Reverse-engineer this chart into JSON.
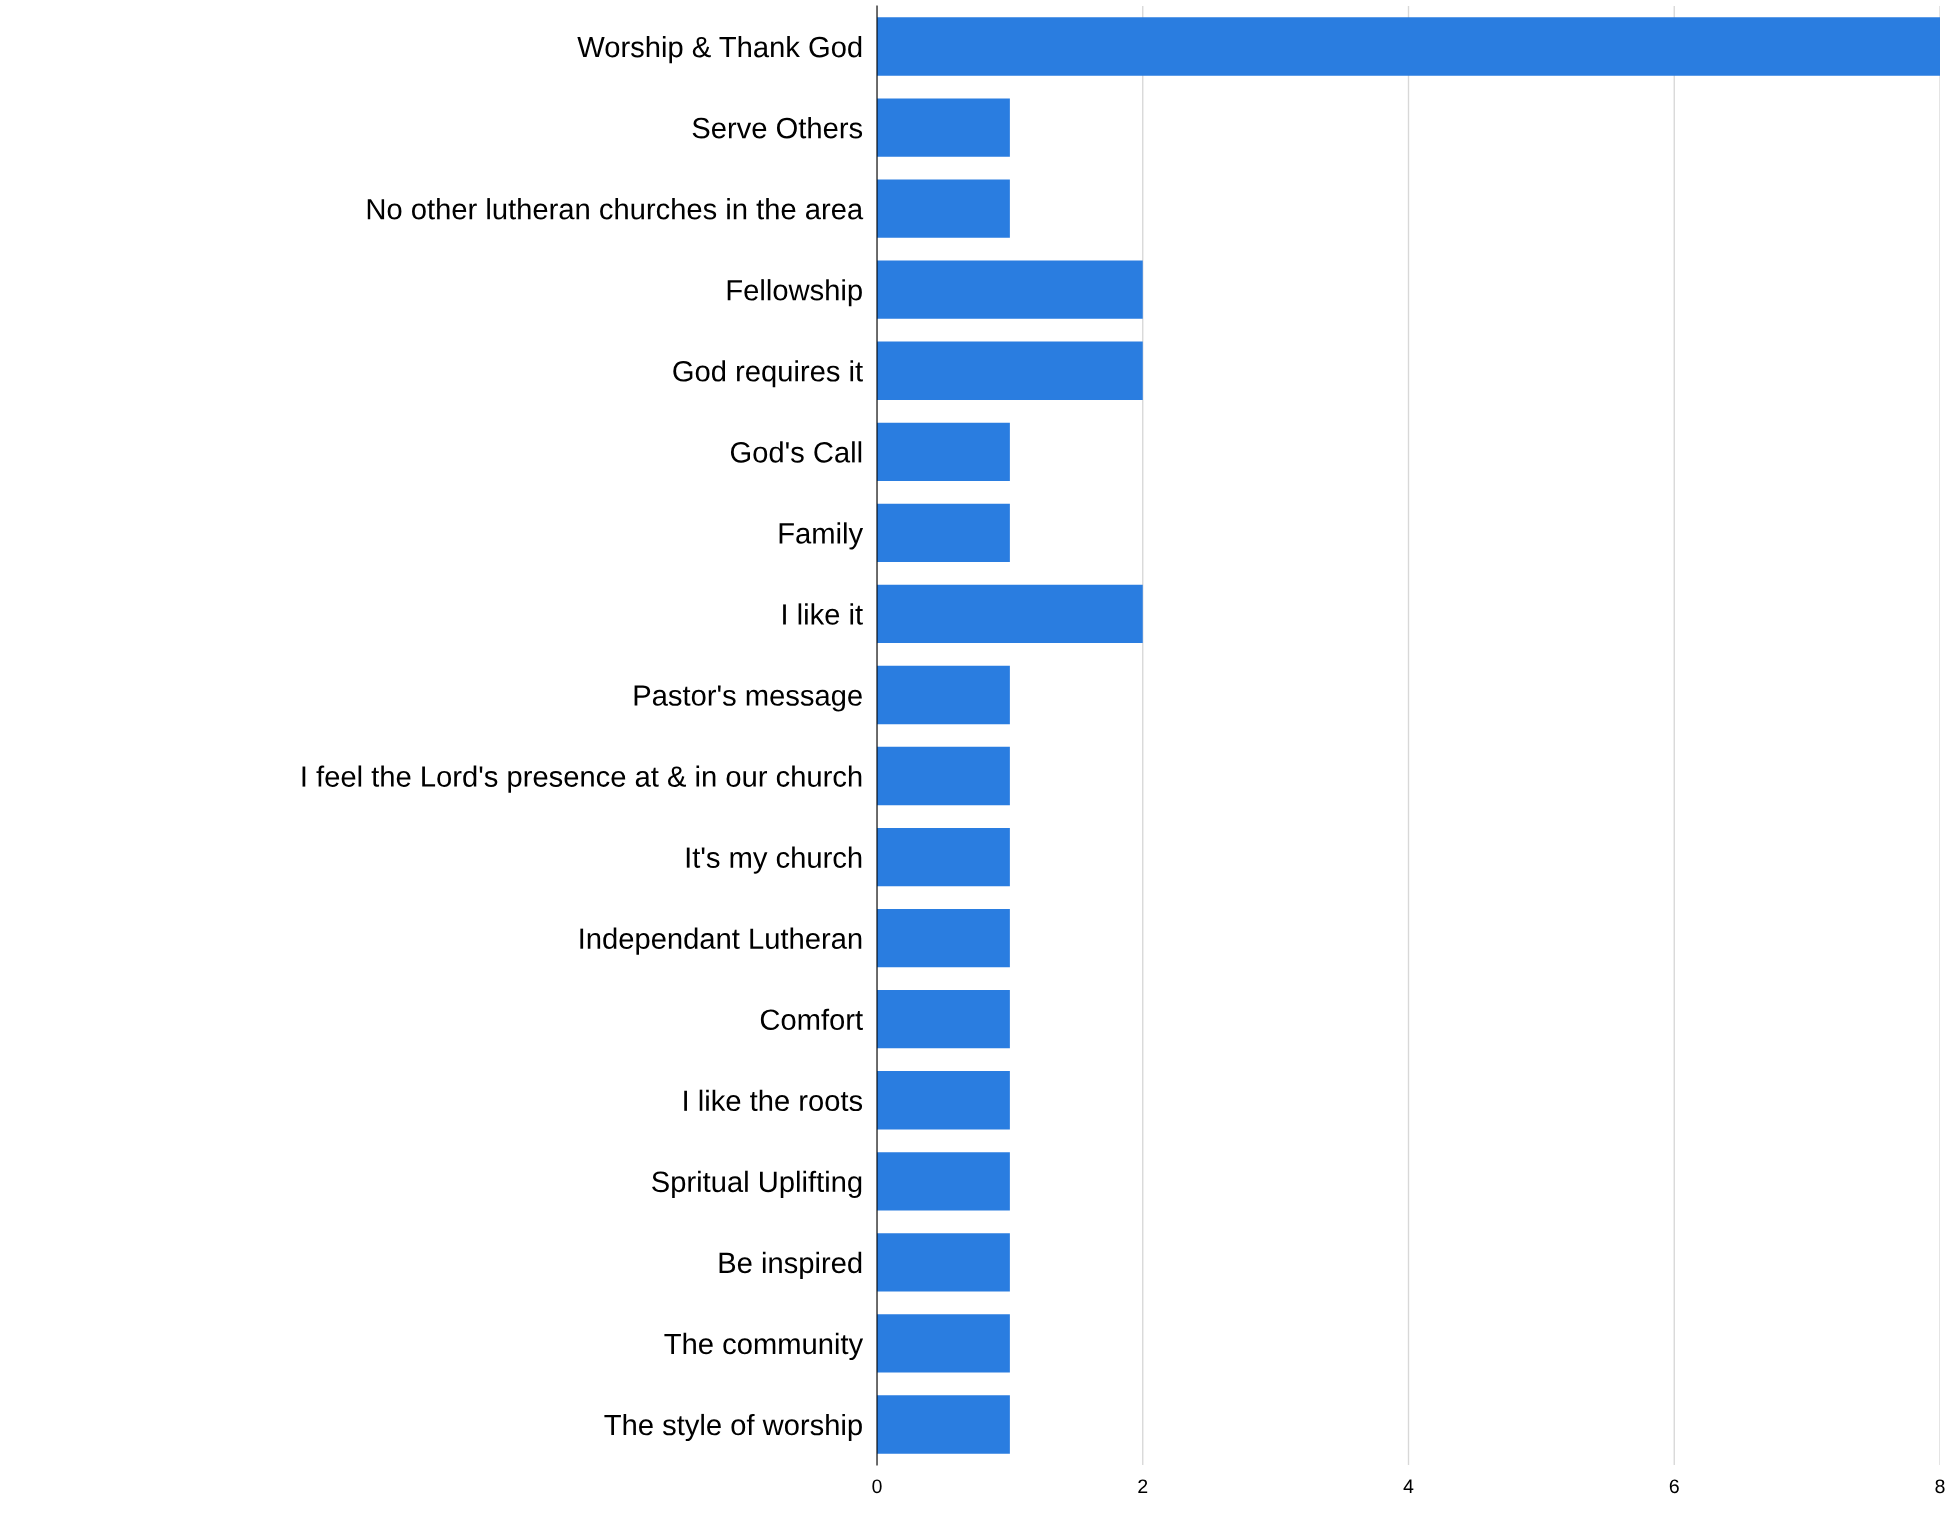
{
  "chart_data": {
    "type": "bar",
    "orientation": "horizontal",
    "categories": [
      "Worship & Thank God",
      "Serve Others",
      "No other lutheran churches in the area",
      "Fellowship",
      "God requires it",
      "God's Call",
      "Family",
      "I like it",
      "Pastor's message",
      "I feel the Lord's presence at & in our church",
      "It's my church",
      "Independant Lutheran",
      "Comfort",
      "I like the roots",
      "Spritual Uplifting",
      "Be inspired",
      "The community",
      "The style of worship"
    ],
    "values": [
      8,
      1,
      1,
      2,
      2,
      1,
      1,
      2,
      1,
      1,
      1,
      1,
      1,
      1,
      1,
      1,
      1,
      1
    ],
    "color": "#2a7de0",
    "xlim": [
      0,
      8
    ],
    "xticks": [
      0,
      2,
      4,
      6,
      8
    ],
    "grid": "x",
    "legend": false
  }
}
